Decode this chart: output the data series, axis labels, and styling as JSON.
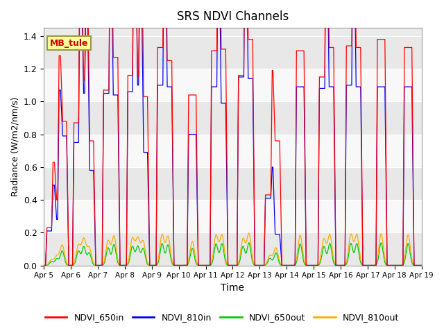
{
  "title": "SRS NDVI Channels",
  "xlabel": "Time",
  "ylabel": "Radiance (W/m2/nm/s)",
  "ylim": [
    0,
    1.45
  ],
  "yticks": [
    0.0,
    0.2,
    0.4,
    0.6,
    0.8,
    1.0,
    1.2,
    1.4
  ],
  "x_tick_labels": [
    "Apr 5",
    "Apr 6",
    "Apr 7",
    "Apr 8",
    "Apr 9",
    "Apr 10",
    "Apr 11",
    "Apr 12",
    "Apr 13",
    "Apr 14",
    "Apr 15",
    "Apr 16",
    "Apr 17",
    "Apr 18",
    "Apr 19"
  ],
  "line_colors": {
    "NDVI_650in": "#ff0000",
    "NDVI_810in": "#0000ee",
    "NDVI_650out": "#00cc00",
    "NDVI_810out": "#ffaa00"
  },
  "annotation_text": "MB_tule",
  "annotation_bg": "#ffff99",
  "annotation_text_color": "#cc0000",
  "annotation_border_color": "#999944",
  "gray_band_color": "#e0e0e0",
  "white_band_color": "#f8f8f8",
  "background_color": "#ffffff",
  "grid_color": "#cccccc",
  "day_peaks_650in": [
    [
      0.23,
      0.4,
      0.88
    ],
    [
      0.87,
      1.13,
      0.76
    ],
    [
      1.07,
      1.27
    ],
    [
      1.16,
      1.15,
      1.03
    ],
    [
      1.33,
      1.25
    ],
    [
      1.04
    ],
    [
      1.31,
      1.32
    ],
    [
      1.16,
      1.38
    ],
    [
      0.43,
      0.76
    ],
    [
      1.31
    ],
    [
      1.15,
      1.33
    ],
    [
      1.34,
      1.33
    ],
    [
      1.38
    ],
    [
      1.33
    ]
  ],
  "day_peaks_810in": [
    [
      0.21,
      0.28,
      0.79
    ],
    [
      0.75,
      1.05,
      0.58
    ],
    [
      1.05,
      1.04
    ],
    [
      1.06,
      1.1,
      0.69
    ],
    [
      1.1,
      1.09
    ],
    [
      0.8
    ],
    [
      1.09,
      0.99
    ],
    [
      1.15,
      1.14
    ],
    [
      0.41,
      0.19
    ],
    [
      1.09
    ],
    [
      1.08,
      1.09
    ],
    [
      1.1,
      1.09
    ],
    [
      1.09
    ],
    [
      1.09
    ]
  ]
}
